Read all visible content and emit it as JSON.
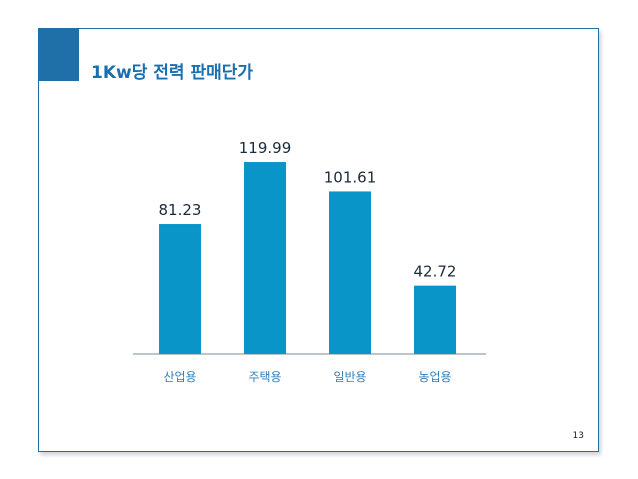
{
  "slide": {
    "title": "1Kw당 전력 판매단가",
    "page_number": "13"
  },
  "colors": {
    "accent": "#1f6fa8",
    "bar": "#0a95c8",
    "title": "#1a6fb0",
    "category_label": "#2f7fb8"
  },
  "chart_data": {
    "type": "bar",
    "title": "",
    "xlabel": "",
    "ylabel": "",
    "categories": [
      "산업용",
      "주택용",
      "일반용",
      "농업용"
    ],
    "values": [
      81.23,
      119.99,
      101.61,
      42.72
    ],
    "value_labels": [
      "81.23",
      "119.99",
      "101.61",
      "42.72"
    ],
    "ylim": [
      0,
      150
    ],
    "grid": false,
    "legend": "none"
  }
}
